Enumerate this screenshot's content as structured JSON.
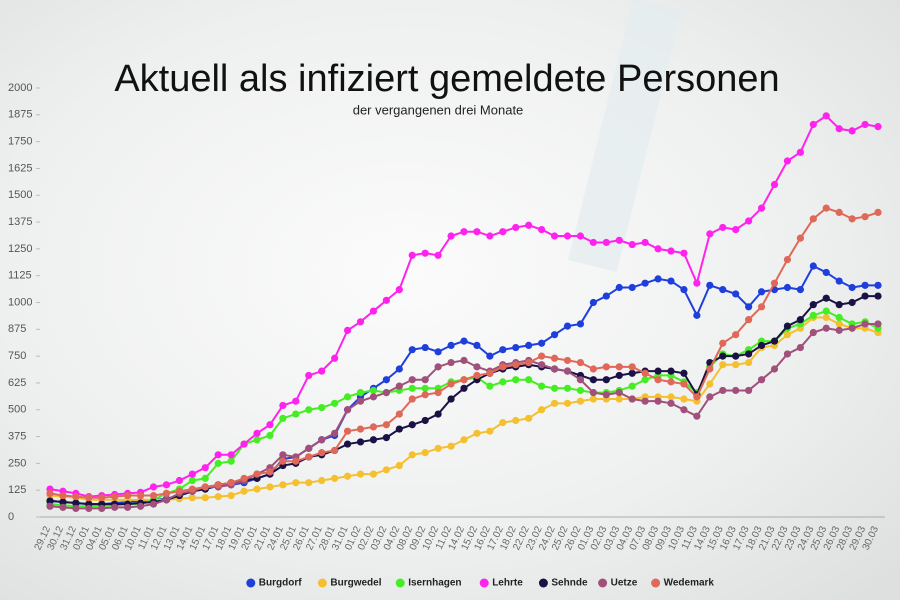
{
  "chart_data": {
    "type": "line",
    "title": "Aktuell als infiziert gemeldete Personen",
    "subtitle": "der vergangenen drei Monate",
    "categories": [
      "29.12",
      "30.12",
      "31.12",
      "03.01",
      "04.01",
      "05.01",
      "06.01",
      "10.01",
      "11.01",
      "12.01",
      "13.01",
      "14.01",
      "15.01",
      "17.01",
      "18.01",
      "19.01",
      "20.01",
      "21.01",
      "24.01",
      "25.01",
      "26.01",
      "27.01",
      "28.01",
      "31.01",
      "01.02",
      "02.02",
      "03.02",
      "04.02",
      "08.02",
      "09.02",
      "10.02",
      "11.02",
      "14.02",
      "15.02",
      "16.02",
      "17.02",
      "18.02",
      "22.02",
      "23.02",
      "24.02",
      "25.02",
      "26.02",
      "01.03",
      "02.03",
      "03.03",
      "04.03",
      "07.03",
      "08.03",
      "09.03",
      "10.03",
      "11.03",
      "14.03",
      "15.03",
      "16.03",
      "17.03",
      "18.03",
      "21.03",
      "22.03",
      "23.03",
      "24.03",
      "25.03",
      "26.03",
      "28.03",
      "29.03",
      "30.03"
    ],
    "series": [
      {
        "name": "Burgdorf",
        "color": "#1f3fdc",
        "values": [
          75,
          70,
          65,
          60,
          60,
          65,
          70,
          75,
          80,
          85,
          100,
          120,
          130,
          145,
          150,
          160,
          180,
          200,
          270,
          280,
          320,
          360,
          380,
          500,
          560,
          600,
          640,
          690,
          780,
          790,
          770,
          800,
          820,
          800,
          750,
          780,
          790,
          800,
          810,
          850,
          890,
          900,
          1000,
          1030,
          1070,
          1070,
          1090,
          1110,
          1100,
          1060,
          940,
          1080,
          1060,
          1040,
          980,
          1050,
          1060,
          1070,
          1060,
          1170,
          1140,
          1100,
          1070,
          1080,
          1080
        ]
      },
      {
        "name": "Burgwedel",
        "color": "#f5c030",
        "values": [
          100,
          95,
          90,
          80,
          80,
          80,
          80,
          80,
          80,
          80,
          85,
          90,
          90,
          95,
          100,
          120,
          130,
          140,
          150,
          160,
          160,
          170,
          180,
          190,
          200,
          200,
          220,
          240,
          290,
          300,
          320,
          330,
          360,
          390,
          400,
          440,
          450,
          460,
          500,
          530,
          530,
          540,
          550,
          550,
          550,
          550,
          560,
          560,
          560,
          550,
          540,
          620,
          710,
          710,
          720,
          790,
          800,
          850,
          880,
          930,
          930,
          900,
          880,
          880,
          860
        ]
      },
      {
        "name": "Isernhagen",
        "color": "#44ee22",
        "values": [
          60,
          55,
          50,
          50,
          50,
          55,
          60,
          60,
          80,
          110,
          130,
          170,
          180,
          250,
          260,
          340,
          360,
          380,
          460,
          480,
          500,
          510,
          530,
          560,
          580,
          590,
          580,
          590,
          600,
          600,
          600,
          630,
          640,
          650,
          610,
          630,
          640,
          640,
          610,
          600,
          600,
          590,
          580,
          580,
          590,
          610,
          640,
          660,
          660,
          630,
          580,
          700,
          760,
          750,
          780,
          820,
          820,
          880,
          900,
          940,
          960,
          930,
          900,
          910,
          880
        ]
      },
      {
        "name": "Lehrte",
        "color": "#ff22ee",
        "values": [
          130,
          120,
          110,
          95,
          100,
          105,
          110,
          115,
          140,
          150,
          170,
          200,
          230,
          290,
          290,
          340,
          390,
          430,
          520,
          540,
          660,
          680,
          740,
          870,
          910,
          960,
          1010,
          1060,
          1220,
          1230,
          1220,
          1310,
          1330,
          1330,
          1310,
          1330,
          1350,
          1360,
          1340,
          1310,
          1310,
          1310,
          1280,
          1280,
          1290,
          1270,
          1280,
          1250,
          1240,
          1230,
          1090,
          1320,
          1350,
          1340,
          1380,
          1440,
          1550,
          1660,
          1700,
          1830,
          1870,
          1810,
          1800,
          1830,
          1820
        ]
      },
      {
        "name": "Sehnde",
        "color": "#1a1245",
        "values": [
          75,
          70,
          65,
          60,
          60,
          60,
          60,
          65,
          70,
          80,
          100,
          120,
          130,
          150,
          160,
          170,
          180,
          200,
          240,
          250,
          280,
          290,
          310,
          340,
          350,
          360,
          370,
          410,
          430,
          450,
          480,
          550,
          600,
          640,
          670,
          690,
          700,
          710,
          700,
          690,
          680,
          660,
          640,
          640,
          660,
          670,
          680,
          680,
          680,
          670,
          570,
          720,
          750,
          750,
          760,
          800,
          820,
          890,
          920,
          990,
          1020,
          990,
          1000,
          1030,
          1030
        ]
      },
      {
        "name": "Uetze",
        "color": "#a0507a",
        "values": [
          50,
          45,
          40,
          40,
          40,
          45,
          45,
          50,
          60,
          80,
          110,
          120,
          140,
          140,
          150,
          170,
          200,
          230,
          290,
          280,
          320,
          360,
          390,
          500,
          540,
          560,
          580,
          610,
          640,
          640,
          700,
          720,
          730,
          700,
          680,
          710,
          720,
          730,
          710,
          690,
          680,
          640,
          580,
          570,
          580,
          550,
          540,
          540,
          530,
          500,
          470,
          560,
          590,
          590,
          590,
          640,
          690,
          760,
          790,
          860,
          880,
          870,
          880,
          900,
          900
        ]
      },
      {
        "name": "Wedemark",
        "color": "#e06858",
        "values": [
          110,
          100,
          95,
          90,
          90,
          95,
          100,
          100,
          100,
          110,
          120,
          130,
          140,
          150,
          160,
          180,
          200,
          210,
          260,
          260,
          280,
          300,
          310,
          400,
          410,
          420,
          430,
          480,
          550,
          570,
          580,
          620,
          640,
          660,
          670,
          700,
          710,
          720,
          750,
          740,
          730,
          720,
          690,
          700,
          700,
          700,
          670,
          640,
          630,
          620,
          560,
          690,
          810,
          850,
          920,
          980,
          1090,
          1200,
          1300,
          1390,
          1440,
          1420,
          1390,
          1400,
          1420
        ]
      }
    ],
    "ylim": [
      0,
      2000
    ],
    "yticks": [
      0,
      125,
      250,
      375,
      500,
      625,
      750,
      875,
      1000,
      1125,
      1250,
      1375,
      1500,
      1625,
      1750,
      1875,
      2000
    ],
    "grid": false,
    "legend": "bottom"
  }
}
